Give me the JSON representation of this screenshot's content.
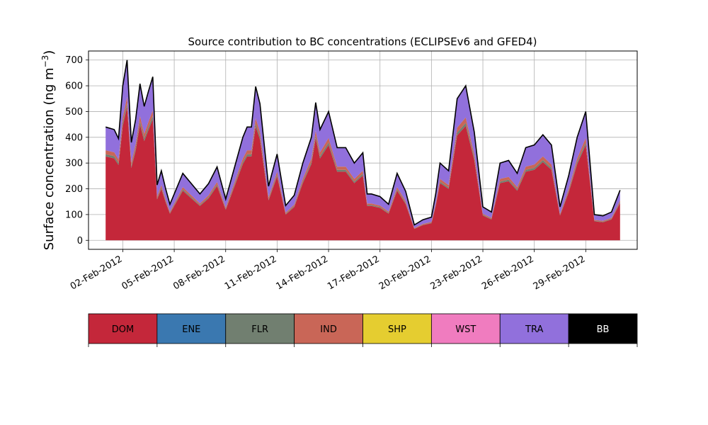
{
  "chart_data": {
    "type": "area",
    "title": "Source contribution to BC concentrations (ECLIPSEv6 and GFED4)",
    "ylabel": "Surface concentration (ng m",
    "ylabel_unit_exponent": "−3",
    "ylabel_close": ")",
    "ylim": [
      -35,
      735
    ],
    "xlim": [
      "2012-01-31",
      "2012-03-03"
    ],
    "yticks": [
      0,
      100,
      200,
      300,
      400,
      500,
      600,
      700
    ],
    "xticks": [
      {
        "date": "2012-02-02",
        "label": "02-Feb-2012"
      },
      {
        "date": "2012-02-05",
        "label": "05-Feb-2012"
      },
      {
        "date": "2012-02-08",
        "label": "08-Feb-2012"
      },
      {
        "date": "2012-02-11",
        "label": "11-Feb-2012"
      },
      {
        "date": "2012-02-14",
        "label": "14-Feb-2012"
      },
      {
        "date": "2012-02-17",
        "label": "17-Feb-2012"
      },
      {
        "date": "2012-02-20",
        "label": "20-Feb-2012"
      },
      {
        "date": "2012-02-23",
        "label": "23-Feb-2012"
      },
      {
        "date": "2012-02-26",
        "label": "26-Feb-2012"
      },
      {
        "date": "2012-02-29",
        "label": "29-Feb-2012"
      }
    ],
    "grid": true,
    "stacked": true,
    "x": [
      "2012-02-01 00:00",
      "2012-02-01 12:00",
      "2012-02-01 18:00",
      "2012-02-02 00:00",
      "2012-02-02 06:00",
      "2012-02-02 12:00",
      "2012-02-02 18:00",
      "2012-02-03 00:00",
      "2012-02-03 06:00",
      "2012-02-03 12:00",
      "2012-02-03 18:00",
      "2012-02-04 00:00",
      "2012-02-04 06:00",
      "2012-02-04 12:00",
      "2012-02-04 18:00",
      "2012-02-05 00:00",
      "2012-02-05 12:00",
      "2012-02-06 00:00",
      "2012-02-06 12:00",
      "2012-02-07 00:00",
      "2012-02-07 12:00",
      "2012-02-08 00:00",
      "2012-02-08 12:00",
      "2012-02-09 00:00",
      "2012-02-09 06:00",
      "2012-02-09 12:00",
      "2012-02-09 18:00",
      "2012-02-10 00:00",
      "2012-02-10 12:00",
      "2012-02-11 00:00",
      "2012-02-11 12:00",
      "2012-02-12 00:00",
      "2012-02-12 12:00",
      "2012-02-13 00:00",
      "2012-02-13 06:00",
      "2012-02-13 12:00",
      "2012-02-14 00:00",
      "2012-02-14 12:00",
      "2012-02-15 00:00",
      "2012-02-15 12:00",
      "2012-02-16 00:00",
      "2012-02-16 06:00",
      "2012-02-16 12:00",
      "2012-02-17 00:00",
      "2012-02-17 12:00",
      "2012-02-18 00:00",
      "2012-02-18 12:00",
      "2012-02-19 00:00",
      "2012-02-19 12:00",
      "2012-02-20 00:00",
      "2012-02-20 06:00",
      "2012-02-20 12:00",
      "2012-02-21 00:00",
      "2012-02-21 12:00",
      "2012-02-22 00:00",
      "2012-02-22 12:00",
      "2012-02-23 00:00",
      "2012-02-23 12:00",
      "2012-02-24 00:00",
      "2012-02-24 12:00",
      "2012-02-25 00:00",
      "2012-02-25 12:00",
      "2012-02-26 00:00",
      "2012-02-26 12:00",
      "2012-02-27 00:00",
      "2012-02-27 12:00",
      "2012-02-28 00:00",
      "2012-02-28 12:00",
      "2012-02-29 00:00",
      "2012-02-29 12:00",
      "2012-03-01 00:00",
      "2012-03-01 12:00",
      "2012-03-02 00:00"
    ],
    "total": [
      440,
      430,
      395,
      600,
      700,
      380,
      470,
      608,
      520,
      580,
      635,
      215,
      270,
      200,
      140,
      180,
      260,
      220,
      180,
      220,
      285,
      160,
      280,
      400,
      440,
      440,
      597,
      530,
      210,
      335,
      135,
      175,
      300,
      400,
      535,
      430,
      500,
      360,
      360,
      300,
      340,
      180,
      180,
      170,
      140,
      260,
      190,
      60,
      80,
      90,
      180,
      300,
      270,
      550,
      600,
      420,
      130,
      110,
      300,
      310,
      260,
      360,
      370,
      410,
      370,
      130,
      250,
      400,
      500,
      100,
      95,
      110,
      195
    ]
  },
  "legend": {
    "items": [
      {
        "label": "DOM",
        "color": "#c4273a",
        "text_color": "#000000"
      },
      {
        "label": "ENE",
        "color": "#3a78b0",
        "text_color": "#000000"
      },
      {
        "label": "FLR",
        "color": "#717f70",
        "text_color": "#000000"
      },
      {
        "label": "IND",
        "color": "#c96657",
        "text_color": "#000000"
      },
      {
        "label": "SHP",
        "color": "#e5cd30",
        "text_color": "#000000"
      },
      {
        "label": "WST",
        "color": "#f07cbf",
        "text_color": "#000000"
      },
      {
        "label": "TRA",
        "color": "#9170dc",
        "text_color": "#000000"
      },
      {
        "label": "BB",
        "color": "#000000",
        "text_color": "#ffffff"
      }
    ]
  }
}
